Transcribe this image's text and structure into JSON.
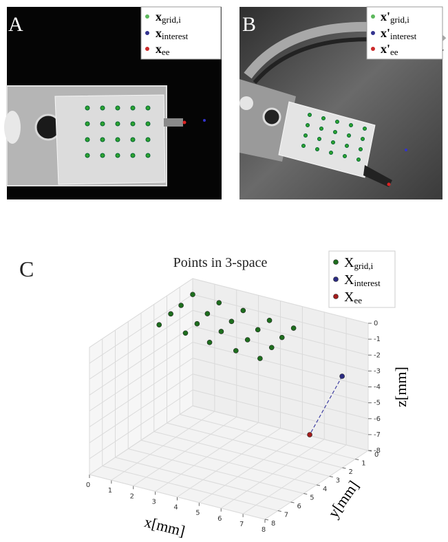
{
  "panels": [
    {
      "label": "A",
      "legend": [
        {
          "name": "x",
          "subscript": "grid,i"
        },
        {
          "name": "x",
          "subscript": "interest"
        },
        {
          "name": "x",
          "subscript": "ee"
        }
      ]
    },
    {
      "label": "B",
      "legend": [
        {
          "name": "x'",
          "subscript": "grid,i"
        },
        {
          "name": "x'",
          "subscript": "interest"
        },
        {
          "name": "x'",
          "subscript": "ee"
        }
      ]
    }
  ],
  "chart_data": {
    "type": "scatter3d",
    "panel_label": "C",
    "title": "Points in 3-space",
    "x_label": "x[mm]",
    "y_label": "y[mm]",
    "z_label": "z[mm]",
    "xlim": [
      0,
      8
    ],
    "ylim": [
      0,
      8
    ],
    "zlim": [
      -8,
      0
    ],
    "xticks": [
      0,
      1,
      2,
      3,
      4,
      5,
      6,
      7,
      8
    ],
    "yticks": [
      0,
      1,
      2,
      3,
      4,
      5,
      6,
      7,
      8
    ],
    "zticks": [
      0,
      -1,
      -2,
      -3,
      -4,
      -5,
      -6,
      -7,
      -8
    ],
    "grid": true,
    "legend": "upper right",
    "series": [
      {
        "name": "X",
        "subscript": "grid,i",
        "color": "#1e6e1e",
        "x": [
          0,
          1.2,
          2.3,
          3.5,
          4.6,
          0,
          1.2,
          2.3,
          3.5,
          4.6,
          0,
          1.2,
          2.3,
          3.5,
          4.6,
          0,
          1.2,
          2.3,
          3.5,
          4.6
        ],
        "y": [
          0,
          0,
          0,
          0,
          0,
          0.9,
          0.9,
          0.9,
          0.9,
          0.9,
          1.7,
          1.7,
          1.7,
          1.7,
          1.7,
          2.6,
          2.6,
          2.6,
          2.6,
          2.6
        ],
        "z": [
          -1.0,
          -1.1,
          -1.2,
          -1.4,
          -1.5,
          -1.2,
          -1.3,
          -1.4,
          -1.5,
          -1.6,
          -1.3,
          -1.5,
          -1.6,
          -1.7,
          -1.8,
          -1.5,
          -1.6,
          -1.8,
          -1.9,
          -2.0
        ]
      },
      {
        "name": "X",
        "subscript": "interest",
        "color": "#2b2b82",
        "x": [
          7.4
        ],
        "y": [
          1
        ],
        "z": [
          -3.0
        ]
      },
      {
        "name": "X",
        "subscript": "ee",
        "color": "#a31c1c",
        "x": [
          7.1
        ],
        "y": [
          3
        ],
        "z": [
          -5.7
        ]
      }
    ]
  }
}
